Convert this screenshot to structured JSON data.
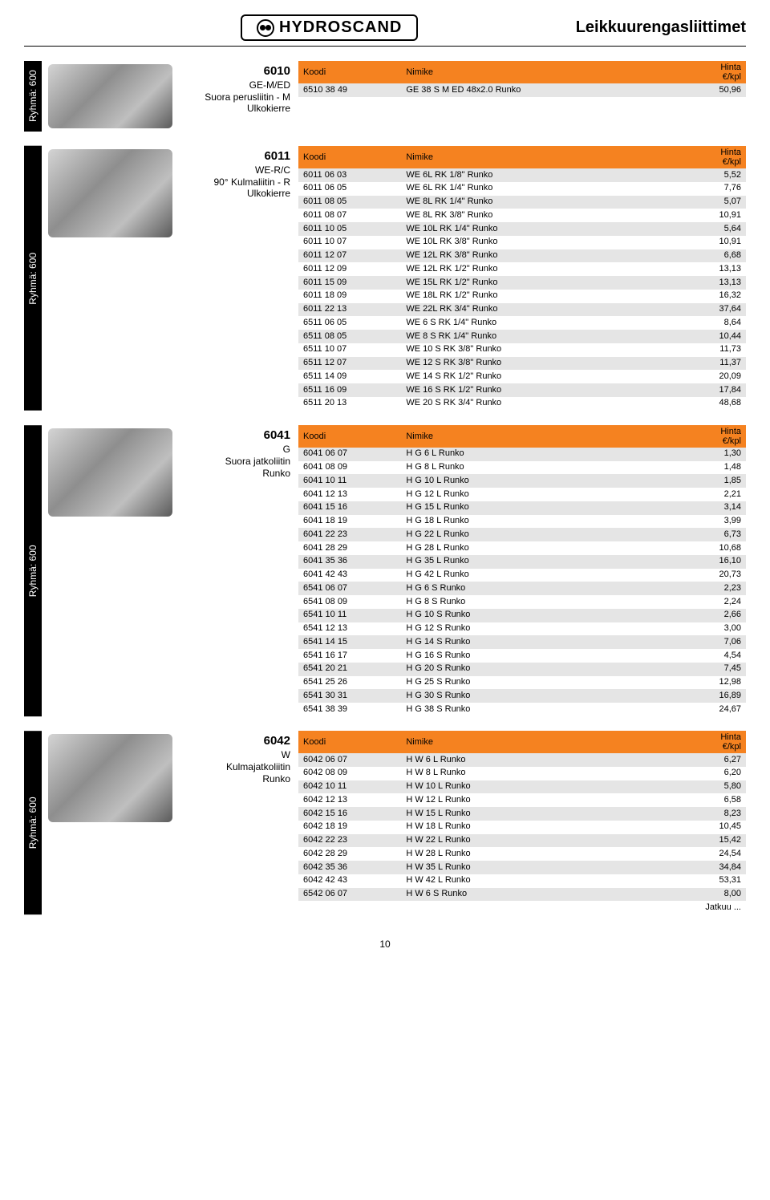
{
  "page": {
    "logo_text": "HYDROSCAND",
    "title": "Leikkuurengasliittimet",
    "footer": "10",
    "continued": "Jatkuu ..."
  },
  "colors": {
    "header_bg": "#f58220",
    "row_alt_bg": "#e5e5e5",
    "row_bg": "#ffffff",
    "sidebar_bg": "#000000",
    "sidebar_text": "#ffffff"
  },
  "table_header": {
    "koodi": "Koodi",
    "nimike": "Nimike",
    "hinta": "Hinta",
    "unit": "€/kpl"
  },
  "side_label": "Ryhmä: 600",
  "sections": [
    {
      "meta": {
        "code": "6010",
        "lines": [
          "GE-M/ED",
          "Suora perusliitin - M Ulkokierre"
        ]
      },
      "rows": [
        [
          "6510 38 49",
          "GE 38 S M ED 48x2.0 Runko",
          "50,96"
        ]
      ]
    },
    {
      "meta": {
        "code": "6011",
        "lines": [
          "WE-R/C",
          "90° Kulmaliitin - R Ulkokierre"
        ]
      },
      "rows": [
        [
          "6011 06 03",
          "WE 6L RK 1/8\" Runko",
          "5,52"
        ],
        [
          "6011 06 05",
          "WE 6L RK 1/4\" Runko",
          "7,76"
        ],
        [
          "6011 08 05",
          "WE 8L RK 1/4\" Runko",
          "5,07"
        ],
        [
          "6011 08 07",
          "WE 8L RK 3/8\" Runko",
          "10,91"
        ],
        [
          "6011 10 05",
          "WE 10L RK 1/4\" Runko",
          "5,64"
        ],
        [
          "6011 10 07",
          "WE 10L RK 3/8\" Runko",
          "10,91"
        ],
        [
          "6011 12 07",
          "WE 12L RK 3/8\" Runko",
          "6,68"
        ],
        [
          "6011 12 09",
          "WE 12L RK 1/2\" Runko",
          "13,13"
        ],
        [
          "6011 15 09",
          "WE 15L RK 1/2\" Runko",
          "13,13"
        ],
        [
          "6011 18 09",
          "WE 18L RK 1/2\" Runko",
          "16,32"
        ],
        [
          "6011 22 13",
          "WE 22L RK 3/4\" Runko",
          "37,64"
        ],
        [
          "6511 06 05",
          "WE 6 S RK 1/4\" Runko",
          "8,64"
        ],
        [
          "6511 08 05",
          "WE 8 S RK 1/4\" Runko",
          "10,44"
        ],
        [
          "6511 10 07",
          "WE 10 S RK 3/8\" Runko",
          "11,73"
        ],
        [
          "6511 12 07",
          "WE 12 S RK 3/8\" Runko",
          "11,37"
        ],
        [
          "6511 14 09",
          "WE 14 S RK 1/2\" Runko",
          "20,09"
        ],
        [
          "6511 16 09",
          "WE 16 S RK 1/2\" Runko",
          "17,84"
        ],
        [
          "6511 20 13",
          "WE 20 S RK 3/4\" Runko",
          "48,68"
        ]
      ]
    },
    {
      "meta": {
        "code": "6041",
        "lines": [
          "G",
          "Suora jatkoliitin",
          "Runko"
        ]
      },
      "rows": [
        [
          "6041 06 07",
          "H G 6 L Runko",
          "1,30"
        ],
        [
          "6041 08 09",
          "H G 8 L Runko",
          "1,48"
        ],
        [
          "6041 10 11",
          "H G 10 L Runko",
          "1,85"
        ],
        [
          "6041 12 13",
          "H G 12 L Runko",
          "2,21"
        ],
        [
          "6041 15 16",
          "H G 15 L Runko",
          "3,14"
        ],
        [
          "6041 18 19",
          "H G 18 L Runko",
          "3,99"
        ],
        [
          "6041 22 23",
          "H G 22 L Runko",
          "6,73"
        ],
        [
          "6041 28 29",
          "H G 28 L Runko",
          "10,68"
        ],
        [
          "6041 35 36",
          "H G 35 L Runko",
          "16,10"
        ],
        [
          "6041 42 43",
          "H G 42 L Runko",
          "20,73"
        ],
        [
          "6541 06 07",
          "H G 6 S Runko",
          "2,23"
        ],
        [
          "6541 08 09",
          "H G 8 S Runko",
          "2,24"
        ],
        [
          "6541 10 11",
          "H G 10 S Runko",
          "2,66"
        ],
        [
          "6541 12 13",
          "H G 12 S Runko",
          "3,00"
        ],
        [
          "6541 14 15",
          "H G 14 S Runko",
          "7,06"
        ],
        [
          "6541 16 17",
          "H G 16 S Runko",
          "4,54"
        ],
        [
          "6541 20 21",
          "H G 20 S Runko",
          "7,45"
        ],
        [
          "6541 25 26",
          "H G 25 S Runko",
          "12,98"
        ],
        [
          "6541 30 31",
          "H G 30 S Runko",
          "16,89"
        ],
        [
          "6541 38 39",
          "H G 38 S Runko",
          "24,67"
        ]
      ]
    },
    {
      "meta": {
        "code": "6042",
        "lines": [
          "W",
          "Kulmajatkoliitin",
          "Runko"
        ]
      },
      "continued": true,
      "rows": [
        [
          "6042 06 07",
          "H W 6 L Runko",
          "6,27"
        ],
        [
          "6042 08 09",
          "H W 8 L Runko",
          "6,20"
        ],
        [
          "6042 10 11",
          "H W 10 L Runko",
          "5,80"
        ],
        [
          "6042 12 13",
          "H W 12 L Runko",
          "6,58"
        ],
        [
          "6042 15 16",
          "H W 15 L Runko",
          "8,23"
        ],
        [
          "6042 18 19",
          "H W 18 L Runko",
          "10,45"
        ],
        [
          "6042 22 23",
          "H W 22 L Runko",
          "15,42"
        ],
        [
          "6042 28 29",
          "H W 28 L Runko",
          "24,54"
        ],
        [
          "6042 35 36",
          "H W 35 L Runko",
          "34,84"
        ],
        [
          "6042 42 43",
          "H W 42 L Runko",
          "53,31"
        ],
        [
          "6542 06 07",
          "H W 6 S Runko",
          "8,00"
        ]
      ]
    }
  ]
}
